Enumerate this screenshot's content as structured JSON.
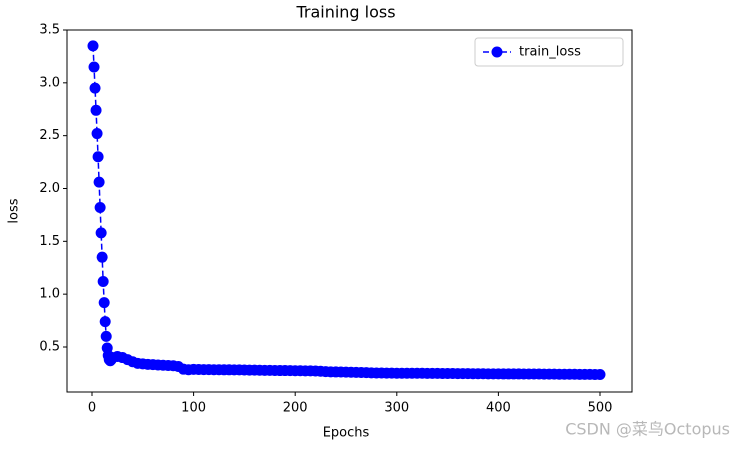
{
  "chart_data": {
    "type": "line",
    "title": "Training loss",
    "x_label": "Epochs",
    "y_label": "loss",
    "x": [
      1,
      2,
      3,
      4,
      5,
      6,
      7,
      8,
      9,
      10,
      11,
      12,
      13,
      14,
      15,
      16,
      17,
      18,
      19,
      20,
      25,
      30,
      35,
      40,
      45,
      50,
      55,
      60,
      65,
      70,
      75,
      80,
      85,
      90,
      95,
      100,
      105,
      110,
      115,
      120,
      125,
      130,
      135,
      140,
      145,
      150,
      155,
      160,
      165,
      170,
      175,
      180,
      185,
      190,
      195,
      200,
      205,
      210,
      215,
      220,
      225,
      230,
      235,
      240,
      245,
      250,
      255,
      260,
      265,
      270,
      275,
      280,
      285,
      290,
      295,
      300,
      305,
      310,
      315,
      320,
      325,
      330,
      335,
      340,
      345,
      350,
      355,
      360,
      365,
      370,
      375,
      380,
      385,
      390,
      395,
      400,
      405,
      410,
      415,
      420,
      425,
      430,
      435,
      440,
      445,
      450,
      455,
      460,
      465,
      470,
      475,
      480,
      485,
      490,
      495,
      500
    ],
    "series": [
      {
        "name": "train_loss",
        "color": "#0000ff",
        "values": [
          3.35,
          3.15,
          2.95,
          2.74,
          2.52,
          2.3,
          2.06,
          1.82,
          1.58,
          1.35,
          1.12,
          0.92,
          0.74,
          0.6,
          0.49,
          0.42,
          0.38,
          0.37,
          0.38,
          0.4,
          0.41,
          0.4,
          0.38,
          0.36,
          0.345,
          0.34,
          0.335,
          0.333,
          0.33,
          0.327,
          0.325,
          0.322,
          0.315,
          0.29,
          0.285,
          0.288,
          0.287,
          0.286,
          0.286,
          0.285,
          0.285,
          0.284,
          0.284,
          0.283,
          0.283,
          0.282,
          0.281,
          0.281,
          0.28,
          0.279,
          0.279,
          0.278,
          0.277,
          0.277,
          0.276,
          0.275,
          0.275,
          0.274,
          0.274,
          0.273,
          0.27,
          0.267,
          0.265,
          0.264,
          0.263,
          0.262,
          0.261,
          0.26,
          0.259,
          0.257,
          0.255,
          0.254,
          0.254,
          0.253,
          0.253,
          0.252,
          0.252,
          0.252,
          0.251,
          0.251,
          0.251,
          0.25,
          0.25,
          0.25,
          0.249,
          0.249,
          0.249,
          0.248,
          0.248,
          0.248,
          0.247,
          0.247,
          0.247,
          0.246,
          0.246,
          0.246,
          0.245,
          0.245,
          0.245,
          0.245,
          0.244,
          0.244,
          0.244,
          0.244,
          0.243,
          0.243,
          0.243,
          0.242,
          0.242,
          0.242,
          0.242,
          0.241,
          0.241,
          0.241,
          0.24,
          0.24
        ]
      }
    ],
    "xlim": [
      -24.6,
      531.5
    ],
    "ylim": [
      0.074,
      3.5
    ],
    "xticks": [
      0,
      100,
      200,
      300,
      400,
      500
    ],
    "yticks": [
      0.5,
      {
        "value": 1,
        "label": "1.0"
      },
      1.5,
      {
        "value": 2,
        "label": "2.0"
      },
      2.5,
      {
        "value": 3,
        "label": "3.0"
      },
      3.5
    ],
    "legend": "upper right",
    "watermark": "CSDN @菜鸟Octopus"
  }
}
